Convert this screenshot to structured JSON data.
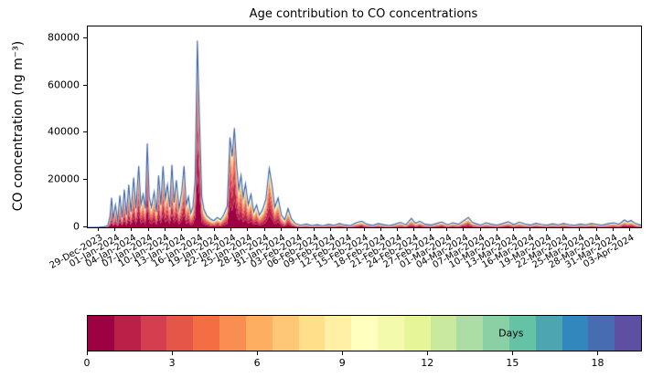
{
  "figure": {
    "background": "#ffffff"
  },
  "chart_data": {
    "type": "area",
    "title": "Age contribution to CO concentrations",
    "ylabel": "CO concentration (ng m⁻³)",
    "xlabel": "",
    "legend": "none",
    "grid": false,
    "ylim": [
      0,
      85000
    ],
    "yticks": [
      0,
      20000,
      40000,
      60000,
      80000
    ],
    "xlim_days": [
      -2,
      98
    ],
    "x_tick_days": [
      0,
      3,
      6,
      9,
      12,
      15,
      18,
      21,
      24,
      27,
      30,
      33,
      36,
      39,
      42,
      45,
      48,
      51,
      54,
      57,
      60,
      63,
      66,
      69,
      72,
      75,
      78,
      81,
      84,
      87,
      90,
      93,
      96
    ],
    "x_tick_labels": [
      "29-Dec-2023",
      "01-Jan-2024",
      "04-Jan-2024",
      "07-Jan-2024",
      "10-Jan-2024",
      "13-Jan-2024",
      "16-Jan-2024",
      "19-Jan-2024",
      "22-Jan-2024",
      "25-Jan-2024",
      "28-Jan-2024",
      "31-Jan-2024",
      "03-Feb-2024",
      "06-Feb-2024",
      "09-Feb-2024",
      "12-Feb-2024",
      "15-Feb-2024",
      "18-Feb-2024",
      "21-Feb-2024",
      "24-Feb-2024",
      "27-Feb-2024",
      "01-Mar-2024",
      "04-Mar-2024",
      "07-Mar-2024",
      "10-Mar-2024",
      "13-Mar-2024",
      "16-Mar-2024",
      "19-Mar-2024",
      "22-Mar-2024",
      "25-Mar-2024",
      "28-Mar-2024",
      "31-Mar-2024",
      "03-Apr-2024"
    ],
    "stacking": "total CO split across air-age bins 0-20 days, youngest at bottom, Spectral colormap",
    "age_colors": [
      "#9e0142",
      "#ba2048",
      "#d53e4f",
      "#e55649",
      "#f46d43",
      "#f98d52",
      "#fdae61",
      "#fec776",
      "#fee08b",
      "#fff0a5",
      "#ffffbf",
      "#f3faac",
      "#e6f598",
      "#c9e99e",
      "#abdda4",
      "#89d0a5",
      "#66c2a5",
      "#4ca5b1",
      "#3288bd",
      "#486cb0",
      "#5e4fa2"
    ],
    "outline_color": "#3b63ad",
    "age_profile": {
      "tau_min": 3.0,
      "tau_max": 6.5,
      "v_ref": 40000
    },
    "points": [
      [
        -2,
        0
      ],
      [
        0,
        120
      ],
      [
        1,
        250
      ],
      [
        1.6,
        700
      ],
      [
        2,
        4500
      ],
      [
        2.3,
        12500
      ],
      [
        2.6,
        3500
      ],
      [
        3,
        9500
      ],
      [
        3.4,
        2800
      ],
      [
        3.8,
        13500
      ],
      [
        4.2,
        4200
      ],
      [
        4.6,
        16000
      ],
      [
        5,
        5200
      ],
      [
        5.4,
        18000
      ],
      [
        5.8,
        6500
      ],
      [
        6.3,
        21000
      ],
      [
        6.7,
        8000
      ],
      [
        7.2,
        26000
      ],
      [
        7.6,
        9500
      ],
      [
        8,
        14000
      ],
      [
        8.4,
        8000
      ],
      [
        8.75,
        35500
      ],
      [
        9.1,
        13000
      ],
      [
        9.5,
        8500
      ],
      [
        10,
        15000
      ],
      [
        10.4,
        6500
      ],
      [
        10.8,
        22000
      ],
      [
        11.2,
        9500
      ],
      [
        11.6,
        26000
      ],
      [
        12,
        12000
      ],
      [
        12.4,
        18000
      ],
      [
        12.8,
        8500
      ],
      [
        13.2,
        26500
      ],
      [
        13.6,
        10500
      ],
      [
        14,
        20000
      ],
      [
        14.5,
        8000
      ],
      [
        15,
        15500
      ],
      [
        15.4,
        26000
      ],
      [
        15.8,
        9500
      ],
      [
        16.2,
        13000
      ],
      [
        16.6,
        6000
      ],
      [
        17,
        8500
      ],
      [
        17.4,
        20000
      ],
      [
        17.8,
        79000
      ],
      [
        18.2,
        45000
      ],
      [
        18.6,
        13000
      ],
      [
        19,
        7500
      ],
      [
        19.5,
        5000
      ],
      [
        20.2,
        3500
      ],
      [
        20.8,
        2800
      ],
      [
        21.4,
        4200
      ],
      [
        22,
        3200
      ],
      [
        22.6,
        5500
      ],
      [
        23.2,
        9000
      ],
      [
        23.7,
        38000
      ],
      [
        24.1,
        30000
      ],
      [
        24.5,
        42000
      ],
      [
        24.9,
        26000
      ],
      [
        25.3,
        16000
      ],
      [
        25.7,
        22000
      ],
      [
        26.1,
        12500
      ],
      [
        26.5,
        18500
      ],
      [
        27,
        9500
      ],
      [
        27.5,
        14000
      ],
      [
        28,
        6500
      ],
      [
        28.5,
        9500
      ],
      [
        29,
        5200
      ],
      [
        29.6,
        7500
      ],
      [
        30.2,
        12000
      ],
      [
        30.8,
        25000
      ],
      [
        31.3,
        18000
      ],
      [
        31.8,
        8500
      ],
      [
        32.4,
        12500
      ],
      [
        33,
        5200
      ],
      [
        33.6,
        3200
      ],
      [
        34.2,
        8000
      ],
      [
        34.8,
        3600
      ],
      [
        35.5,
        1600
      ],
      [
        36.5,
        900
      ],
      [
        37.5,
        1400
      ],
      [
        38.5,
        800
      ],
      [
        39.5,
        1100
      ],
      [
        40.5,
        700
      ],
      [
        41.5,
        1300
      ],
      [
        42.5,
        900
      ],
      [
        43.5,
        1600
      ],
      [
        44.5,
        1000
      ],
      [
        45.5,
        800
      ],
      [
        46.5,
        1900
      ],
      [
        47.5,
        2600
      ],
      [
        48.5,
        1300
      ],
      [
        49.5,
        900
      ],
      [
        50.5,
        1600
      ],
      [
        51.5,
        1100
      ],
      [
        52.5,
        800
      ],
      [
        53.5,
        1300
      ],
      [
        54.5,
        2100
      ],
      [
        55.5,
        1100
      ],
      [
        56.5,
        3800
      ],
      [
        57.2,
        1700
      ],
      [
        58,
        2600
      ],
      [
        59,
        1300
      ],
      [
        60,
        1000
      ],
      [
        61,
        1600
      ],
      [
        62,
        2300
      ],
      [
        63,
        1100
      ],
      [
        64,
        1900
      ],
      [
        65,
        1300
      ],
      [
        66,
        2900
      ],
      [
        66.8,
        4200
      ],
      [
        67.5,
        2100
      ],
      [
        68.2,
        1500
      ],
      [
        69,
        1000
      ],
      [
        70,
        1900
      ],
      [
        71,
        1300
      ],
      [
        72,
        950
      ],
      [
        73,
        1600
      ],
      [
        74,
        2400
      ],
      [
        75,
        1150
      ],
      [
        76,
        2200
      ],
      [
        77,
        1450
      ],
      [
        78,
        1000
      ],
      [
        79,
        1700
      ],
      [
        80,
        1250
      ],
      [
        81,
        950
      ],
      [
        82,
        1500
      ],
      [
        83,
        1050
      ],
      [
        84,
        1600
      ],
      [
        85,
        1150
      ],
      [
        86,
        850
      ],
      [
        87,
        1400
      ],
      [
        88,
        1050
      ],
      [
        89,
        1600
      ],
      [
        90,
        1250
      ],
      [
        91,
        950
      ],
      [
        92,
        1500
      ],
      [
        93,
        1900
      ],
      [
        94,
        1300
      ],
      [
        95,
        3100
      ],
      [
        95.6,
        2300
      ],
      [
        96.2,
        2900
      ],
      [
        97,
        1600
      ],
      [
        98,
        900
      ]
    ],
    "colorbar": {
      "label": "Days",
      "vmin": 0,
      "vmax": 19.5,
      "ticks": [
        0,
        3,
        6,
        9,
        12,
        15,
        18
      ]
    }
  }
}
